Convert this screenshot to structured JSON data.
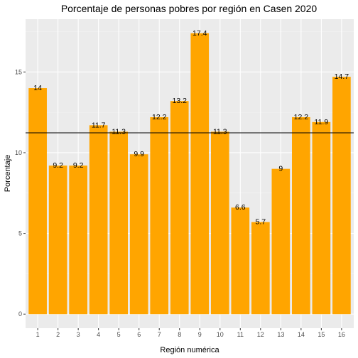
{
  "chart_data": {
    "type": "bar",
    "title": "Porcentaje de personas pobres por región en Casen 2020",
    "xlabel": "Región numérica",
    "ylabel": "Porcentaje",
    "categories": [
      "1",
      "2",
      "3",
      "4",
      "5",
      "6",
      "7",
      "8",
      "9",
      "10",
      "11",
      "12",
      "13",
      "14",
      "15",
      "16"
    ],
    "values": [
      14,
      9.2,
      9.2,
      11.7,
      11.3,
      9.9,
      12.2,
      13.2,
      17.4,
      11.3,
      6.6,
      5.7,
      9,
      12.2,
      11.9,
      14.7
    ],
    "data_labels": [
      "14",
      "9.2",
      "9.2",
      "11.7",
      "11.3",
      "9.9",
      "12.2",
      "13.2",
      "17.4",
      "11.3",
      "6.6",
      "5.7",
      "9",
      "12.2",
      "11.9",
      "14.7"
    ],
    "yticks": [
      0,
      5,
      10,
      15
    ],
    "ylim": [
      -0.87,
      18.27
    ],
    "reference_line": 11.23,
    "grid": true,
    "colors": {
      "bar": "#FFA500",
      "panel": "#EBEBEB",
      "grid_major": "#FFFFFF",
      "grid_minor": "#F5F5F5",
      "reference_line": "#000000"
    }
  }
}
